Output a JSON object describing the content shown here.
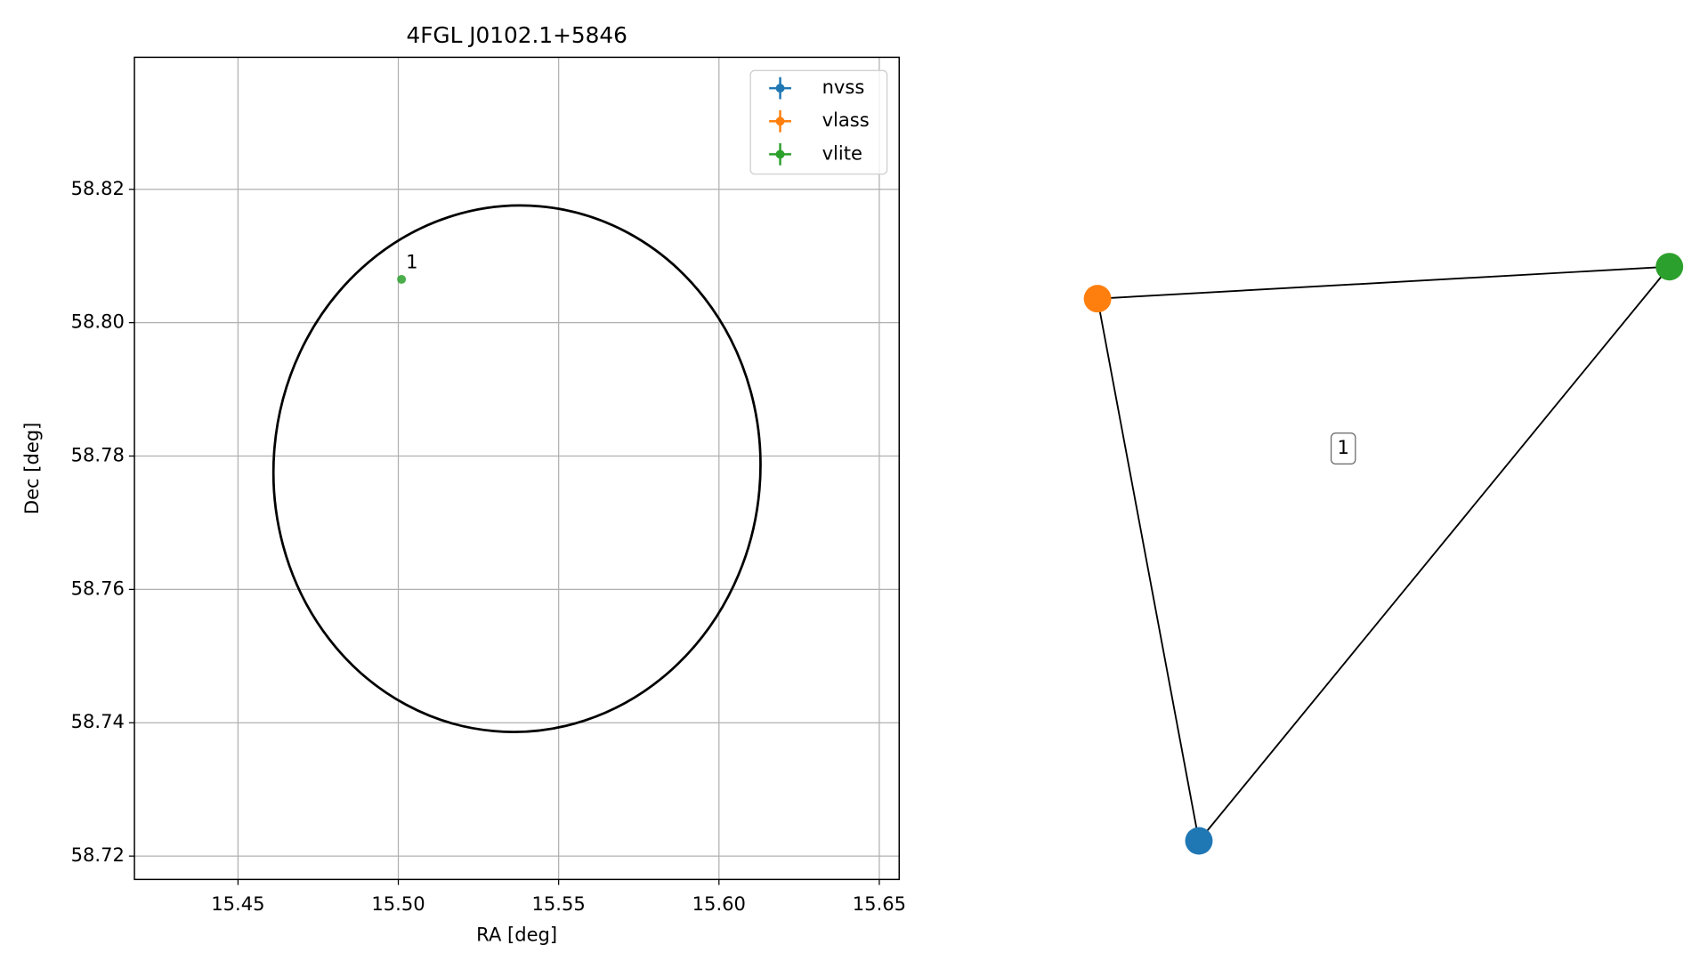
{
  "chart_data": [
    {
      "type": "scatter",
      "title": "4FGL J0102.1+5846",
      "x_label": "RA [deg]",
      "y_label": "Dec [deg]",
      "xlim": [
        15.4177,
        15.6562
      ],
      "ylim": [
        58.7165,
        58.8398
      ],
      "xticks": [
        15.45,
        {
          "value": 15.5,
          "label": "15.50"
        },
        15.55,
        {
          "value": 15.6,
          "label": "15.60"
        },
        15.65
      ],
      "yticks": [
        58.72,
        58.74,
        58.76,
        58.78,
        {
          "value": 58.8,
          "label": "58.80"
        },
        58.82
      ],
      "grid": true,
      "legend": "upper right",
      "ellipse": {
        "center_x": 15.537,
        "center_y": 58.7781,
        "semi_x": 0.0759,
        "semi_y": 0.0395,
        "angle": 5
      },
      "series": [
        {
          "name": "nvss",
          "color": "#1f77b4",
          "x": [],
          "values": [],
          "labels": []
        },
        {
          "name": "vlass",
          "color": "#ff7f0e",
          "x": [],
          "values": [],
          "labels": []
        },
        {
          "name": "vlite",
          "color": "#2ca02c",
          "x": [
            15.501
          ],
          "values": [
            58.8065
          ],
          "labels": [
            "1"
          ]
        }
      ]
    },
    {
      "type": "network",
      "nodes": [
        {
          "name": "nvss",
          "color": "#1f77b4"
        },
        {
          "name": "vlass",
          "color": "#ff7f0e"
        },
        {
          "name": "vlite",
          "color": "#2ca02c"
        }
      ],
      "edges": [
        [
          1,
          2
        ],
        [
          1,
          0
        ],
        [
          2,
          0
        ]
      ],
      "label": "1"
    }
  ]
}
